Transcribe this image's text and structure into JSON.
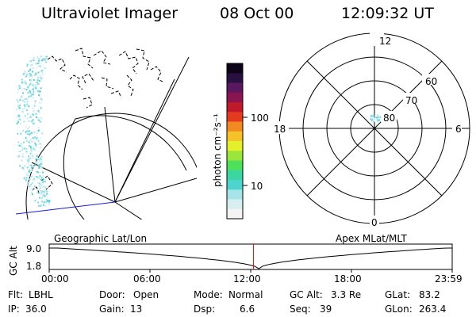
{
  "header": {
    "instrument": "Ultraviolet Imager",
    "date": "08 Oct 00",
    "time": "12:09:32 UT"
  },
  "colorbar": {
    "unit_label": "photon cm⁻²s⁻¹",
    "ticks": [
      "100",
      "10"
    ],
    "colors": [
      "#f4f4f4",
      "#d8eef0",
      "#a6e4ea",
      "#4fd3cf",
      "#3cd6a0",
      "#4fe05a",
      "#9be63c",
      "#e6ef2c",
      "#f6c22a",
      "#f18a20",
      "#e43a20",
      "#c01a2a",
      "#8a1550",
      "#5a1860",
      "#2a1040",
      "#0c0418"
    ]
  },
  "polar_plot": {
    "mlt_labels": {
      "top": "12",
      "bottom": "0",
      "left": "18",
      "right": "6"
    },
    "lat_labels": [
      "60",
      "70",
      "80"
    ]
  },
  "timeline": {
    "left_title": "Geographic Lat/Lon",
    "right_title": "Apex MLat/MLT",
    "y_axis_label": "GC Alt",
    "y_ticks": [
      "9.0",
      "1.8"
    ],
    "x_ticks": [
      "00:00",
      "06:00",
      "12:00",
      "18:00",
      "23:59"
    ],
    "current_time_fraction": 0.507,
    "orbit_line_color": "#000000",
    "marker_color": "#e00000"
  },
  "footer": {
    "row1": [
      {
        "label": "Flt:",
        "value": "LBHL"
      },
      {
        "label": "Door:",
        "value": "Open"
      },
      {
        "label": "Mode:",
        "value": "Normal"
      },
      {
        "label": "GC Alt:",
        "value": "3.3 Re"
      },
      {
        "label": "GLat:",
        "value": "83.2"
      }
    ],
    "row2": [
      {
        "label": "IP:",
        "value": "36.0"
      },
      {
        "label": "Gain:",
        "value": "13"
      },
      {
        "label": "Dsp:",
        "value": "6.6"
      },
      {
        "label": "Seq:",
        "value": "39"
      },
      {
        "label": "GLon:",
        "value": "263.4"
      }
    ]
  }
}
